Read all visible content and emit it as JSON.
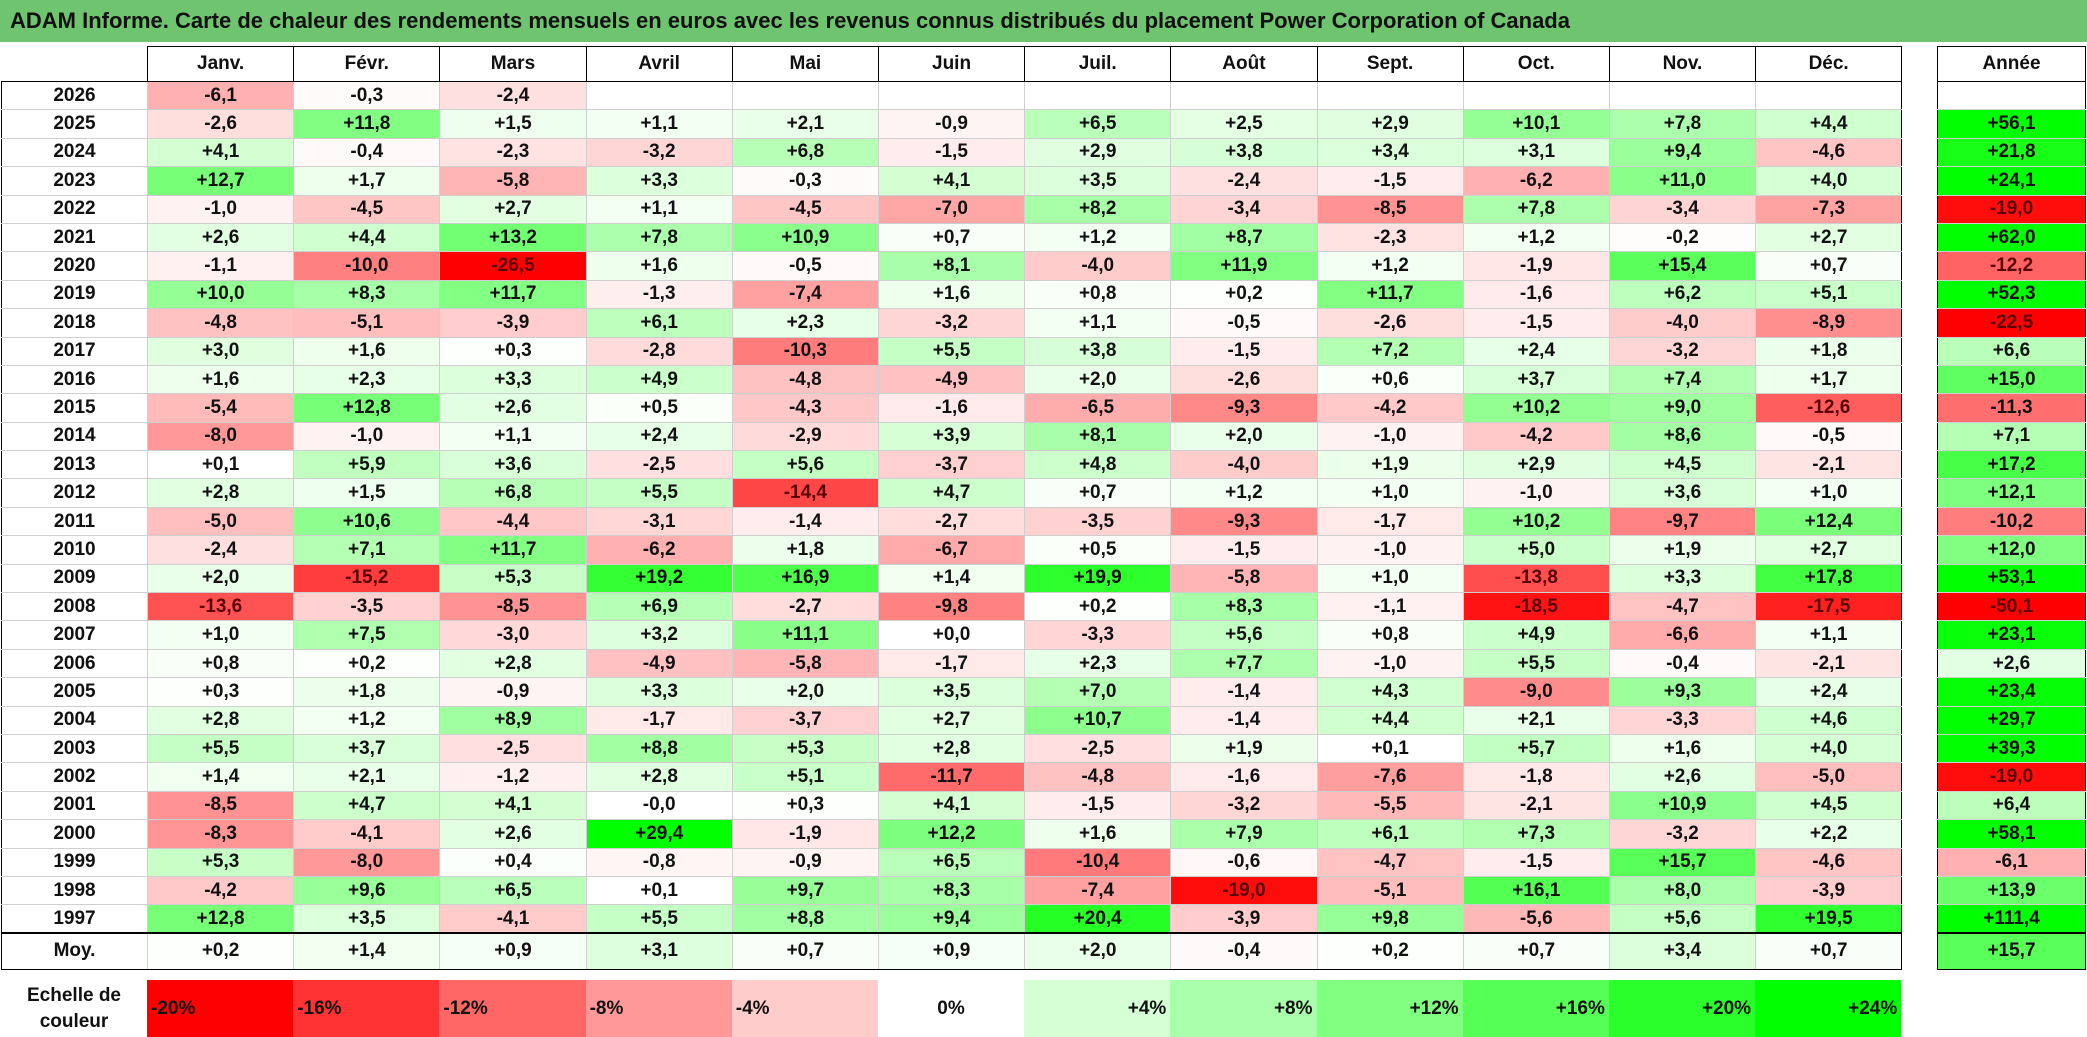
{
  "title": "ADAM Informe. Carte de chaleur des rendements mensuels en euros avec les revenus connus distribués du placement Power Corporation of Canada",
  "chart_data": {
    "type": "heatmap",
    "months": [
      "Janv.",
      "Févr.",
      "Mars",
      "Avril",
      "Mai",
      "Juin",
      "Juil.",
      "Août",
      "Sept.",
      "Oct.",
      "Nov.",
      "Déc."
    ],
    "year_header": "Année",
    "rows": [
      {
        "year": "2026",
        "values": [
          "-6,1",
          "-0,3",
          "-2,4",
          "",
          "",
          "",
          "",
          "",
          "",
          "",
          "",
          ""
        ],
        "annual": ""
      },
      {
        "year": "2025",
        "values": [
          "-2,6",
          "+11,8",
          "+1,5",
          "+1,1",
          "+2,1",
          "-0,9",
          "+6,5",
          "+2,5",
          "+2,9",
          "+10,1",
          "+7,8",
          "+4,4"
        ],
        "annual": "+56,1"
      },
      {
        "year": "2024",
        "values": [
          "+4,1",
          "-0,4",
          "-2,3",
          "-3,2",
          "+6,8",
          "-1,5",
          "+2,9",
          "+3,8",
          "+3,4",
          "+3,1",
          "+9,4",
          "-4,6"
        ],
        "annual": "+21,8"
      },
      {
        "year": "2023",
        "values": [
          "+12,7",
          "+1,7",
          "-5,8",
          "+3,3",
          "-0,3",
          "+4,1",
          "+3,5",
          "-2,4",
          "-1,5",
          "-6,2",
          "+11,0",
          "+4,0"
        ],
        "annual": "+24,1"
      },
      {
        "year": "2022",
        "values": [
          "-1,0",
          "-4,5",
          "+2,7",
          "+1,1",
          "-4,5",
          "-7,0",
          "+8,2",
          "-3,4",
          "-8,5",
          "+7,8",
          "-3,4",
          "-7,3"
        ],
        "annual": "-19,0"
      },
      {
        "year": "2021",
        "values": [
          "+2,6",
          "+4,4",
          "+13,2",
          "+7,8",
          "+10,9",
          "+0,7",
          "+1,2",
          "+8,7",
          "-2,3",
          "+1,2",
          "-0,2",
          "+2,7"
        ],
        "annual": "+62,0"
      },
      {
        "year": "2020",
        "values": [
          "-1,1",
          "-10,0",
          "-26,5",
          "+1,6",
          "-0,5",
          "+8,1",
          "-4,0",
          "+11,9",
          "+1,2",
          "-1,9",
          "+15,4",
          "+0,7"
        ],
        "annual": "-12,2"
      },
      {
        "year": "2019",
        "values": [
          "+10,0",
          "+8,3",
          "+11,7",
          "-1,3",
          "-7,4",
          "+1,6",
          "+0,8",
          "+0,2",
          "+11,7",
          "-1,6",
          "+6,2",
          "+5,1"
        ],
        "annual": "+52,3"
      },
      {
        "year": "2018",
        "values": [
          "-4,8",
          "-5,1",
          "-3,9",
          "+6,1",
          "+2,3",
          "-3,2",
          "+1,1",
          "-0,5",
          "-2,6",
          "-1,5",
          "-4,0",
          "-8,9"
        ],
        "annual": "-22,5"
      },
      {
        "year": "2017",
        "values": [
          "+3,0",
          "+1,6",
          "+0,3",
          "-2,8",
          "-10,3",
          "+5,5",
          "+3,8",
          "-1,5",
          "+7,2",
          "+2,4",
          "-3,2",
          "+1,8"
        ],
        "annual": "+6,6"
      },
      {
        "year": "2016",
        "values": [
          "+1,6",
          "+2,3",
          "+3,3",
          "+4,9",
          "-4,8",
          "-4,9",
          "+2,0",
          "-2,6",
          "+0,6",
          "+3,7",
          "+7,4",
          "+1,7"
        ],
        "annual": "+15,0"
      },
      {
        "year": "2015",
        "values": [
          "-5,4",
          "+12,8",
          "+2,6",
          "+0,5",
          "-4,3",
          "-1,6",
          "-6,5",
          "-9,3",
          "-4,2",
          "+10,2",
          "+9,0",
          "-12,6"
        ],
        "annual": "-11,3"
      },
      {
        "year": "2014",
        "values": [
          "-8,0",
          "-1,0",
          "+1,1",
          "+2,4",
          "-2,9",
          "+3,9",
          "+8,1",
          "+2,0",
          "-1,0",
          "-4,2",
          "+8,6",
          "-0,5"
        ],
        "annual": "+7,1"
      },
      {
        "year": "2013",
        "values": [
          "+0,1",
          "+5,9",
          "+3,6",
          "-2,5",
          "+5,6",
          "-3,7",
          "+4,8",
          "-4,0",
          "+1,9",
          "+2,9",
          "+4,5",
          "-2,1"
        ],
        "annual": "+17,2"
      },
      {
        "year": "2012",
        "values": [
          "+2,8",
          "+1,5",
          "+6,8",
          "+5,5",
          "-14,4",
          "+4,7",
          "+0,7",
          "+1,2",
          "+1,0",
          "-1,0",
          "+3,6",
          "+1,0"
        ],
        "annual": "+12,1"
      },
      {
        "year": "2011",
        "values": [
          "-5,0",
          "+10,6",
          "-4,4",
          "-3,1",
          "-1,4",
          "-2,7",
          "-3,5",
          "-9,3",
          "-1,7",
          "+10,2",
          "-9,7",
          "+12,4"
        ],
        "annual": "-10,2"
      },
      {
        "year": "2010",
        "values": [
          "-2,4",
          "+7,1",
          "+11,7",
          "-6,2",
          "+1,8",
          "-6,7",
          "+0,5",
          "-1,5",
          "-1,0",
          "+5,0",
          "+1,9",
          "+2,7"
        ],
        "annual": "+12,0"
      },
      {
        "year": "2009",
        "values": [
          "+2,0",
          "-15,2",
          "+5,3",
          "+19,2",
          "+16,9",
          "+1,4",
          "+19,9",
          "-5,8",
          "+1,0",
          "-13,8",
          "+3,3",
          "+17,8"
        ],
        "annual": "+53,1"
      },
      {
        "year": "2008",
        "values": [
          "-13,6",
          "-3,5",
          "-8,5",
          "+6,9",
          "-2,7",
          "-9,8",
          "+0,2",
          "+8,3",
          "-1,1",
          "-18,5",
          "-4,7",
          "-17,5"
        ],
        "annual": "-50,1"
      },
      {
        "year": "2007",
        "values": [
          "+1,0",
          "+7,5",
          "-3,0",
          "+3,2",
          "+11,1",
          "+0,0",
          "-3,3",
          "+5,6",
          "+0,8",
          "+4,9",
          "-6,6",
          "+1,1"
        ],
        "annual": "+23,1"
      },
      {
        "year": "2006",
        "values": [
          "+0,8",
          "+0,2",
          "+2,8",
          "-4,9",
          "-5,8",
          "-1,7",
          "+2,3",
          "+7,7",
          "-1,0",
          "+5,5",
          "-0,4",
          "-2,1"
        ],
        "annual": "+2,6"
      },
      {
        "year": "2005",
        "values": [
          "+0,3",
          "+1,8",
          "-0,9",
          "+3,3",
          "+2,0",
          "+3,5",
          "+7,0",
          "-1,4",
          "+4,3",
          "-9,0",
          "+9,3",
          "+2,4"
        ],
        "annual": "+23,4"
      },
      {
        "year": "2004",
        "values": [
          "+2,8",
          "+1,2",
          "+8,9",
          "-1,7",
          "-3,7",
          "+2,7",
          "+10,7",
          "-1,4",
          "+4,4",
          "+2,1",
          "-3,3",
          "+4,6"
        ],
        "annual": "+29,7"
      },
      {
        "year": "2003",
        "values": [
          "+5,5",
          "+3,7",
          "-2,5",
          "+8,8",
          "+5,3",
          "+2,8",
          "-2,5",
          "+1,9",
          "+0,1",
          "+5,7",
          "+1,6",
          "+4,0"
        ],
        "annual": "+39,3"
      },
      {
        "year": "2002",
        "values": [
          "+1,4",
          "+2,1",
          "-1,2",
          "+2,8",
          "+5,1",
          "-11,7",
          "-4,8",
          "-1,6",
          "-7,6",
          "-1,8",
          "+2,6",
          "-5,0"
        ],
        "annual": "-19,0"
      },
      {
        "year": "2001",
        "values": [
          "-8,5",
          "+4,7",
          "+4,1",
          "-0,0",
          "+0,3",
          "+4,1",
          "-1,5",
          "-3,2",
          "-5,5",
          "-2,1",
          "+10,9",
          "+4,5"
        ],
        "annual": "+6,4"
      },
      {
        "year": "2000",
        "values": [
          "-8,3",
          "-4,1",
          "+2,6",
          "+29,4",
          "-1,9",
          "+12,2",
          "+1,6",
          "+7,9",
          "+6,1",
          "+7,3",
          "-3,2",
          "+2,2"
        ],
        "annual": "+58,1"
      },
      {
        "year": "1999",
        "values": [
          "+5,3",
          "-8,0",
          "+0,4",
          "-0,8",
          "-0,9",
          "+6,5",
          "-10,4",
          "-0,6",
          "-4,7",
          "-1,5",
          "+15,7",
          "-4,6"
        ],
        "annual": "-6,1"
      },
      {
        "year": "1998",
        "values": [
          "-4,2",
          "+9,6",
          "+6,5",
          "+0,1",
          "+9,7",
          "+8,3",
          "-7,4",
          "-19,0",
          "-5,1",
          "+16,1",
          "+8,0",
          "-3,9"
        ],
        "annual": "+13,9"
      },
      {
        "year": "1997",
        "values": [
          "+12,8",
          "+3,5",
          "-4,1",
          "+5,5",
          "+8,8",
          "+9,4",
          "+20,4",
          "-3,9",
          "+9,8",
          "-5,6",
          "+5,6",
          "+19,5"
        ],
        "annual": "+111,4"
      }
    ],
    "average": {
      "label": "Moy.",
      "values": [
        "+0,2",
        "+1,4",
        "+0,9",
        "+3,1",
        "+0,7",
        "+0,9",
        "+2,0",
        "-0,4",
        "+0,2",
        "+0,7",
        "+3,4",
        "+0,7"
      ],
      "annual": "+15,7"
    },
    "scale": {
      "label": "Echelle de couleur",
      "stops": [
        "-20%",
        "-16%",
        "-12%",
        "-8%",
        "-4%",
        "0%",
        "+4%",
        "+8%",
        "+12%",
        "+16%",
        "+20%",
        "+24%"
      ],
      "stop_values": [
        -20,
        -16,
        -12,
        -8,
        -4,
        0,
        4,
        8,
        12,
        16,
        20,
        24
      ]
    },
    "colors": {
      "negative": "#ff0000",
      "positive": "#00ff00",
      "neutral": "#ffffff"
    }
  }
}
